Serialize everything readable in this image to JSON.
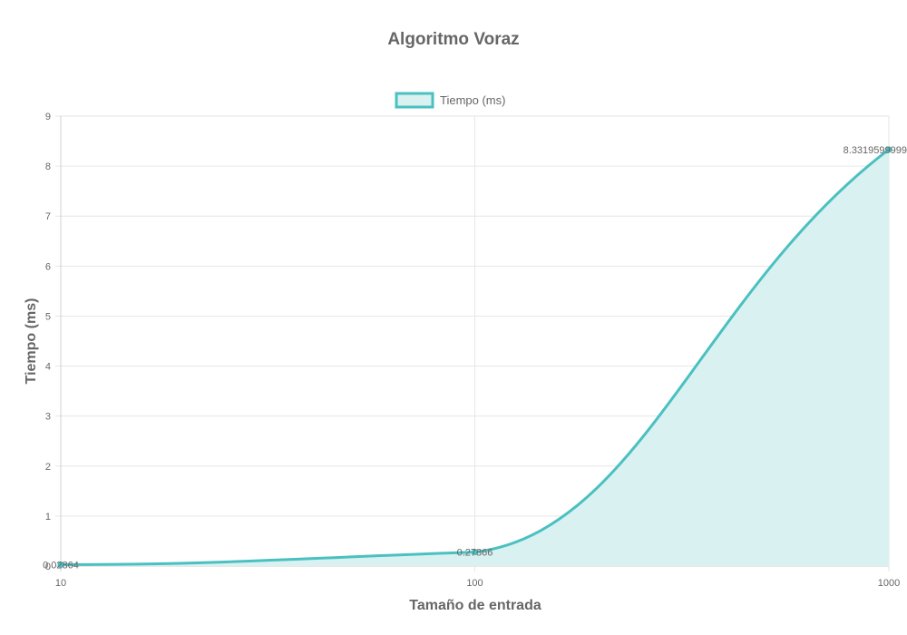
{
  "chart_data": {
    "type": "line",
    "title": "Algoritmo Voraz",
    "xlabel": "Tamaño de entrada",
    "ylabel": "Tiempo (ms)",
    "x_scale": "log",
    "x_ticks": [
      "10",
      "100",
      "1000"
    ],
    "y_ticks": [
      "0",
      "1",
      "2",
      "3",
      "4",
      "5",
      "6",
      "7",
      "8",
      "9"
    ],
    "ylim": [
      0,
      9
    ],
    "xlim": [
      10,
      1000
    ],
    "grid": true,
    "legend_position": "top",
    "series": [
      {
        "name": "Tiempo (ms)",
        "fill": true,
        "color": "#4bc0c0",
        "fill_color": "#d9f1f1",
        "x": [
          10,
          100,
          1000
        ],
        "values": [
          0.02864,
          0.27866,
          8.3319599999
        ],
        "labels": [
          "0.02864",
          "0.27866",
          "8.3319599999"
        ]
      }
    ]
  }
}
